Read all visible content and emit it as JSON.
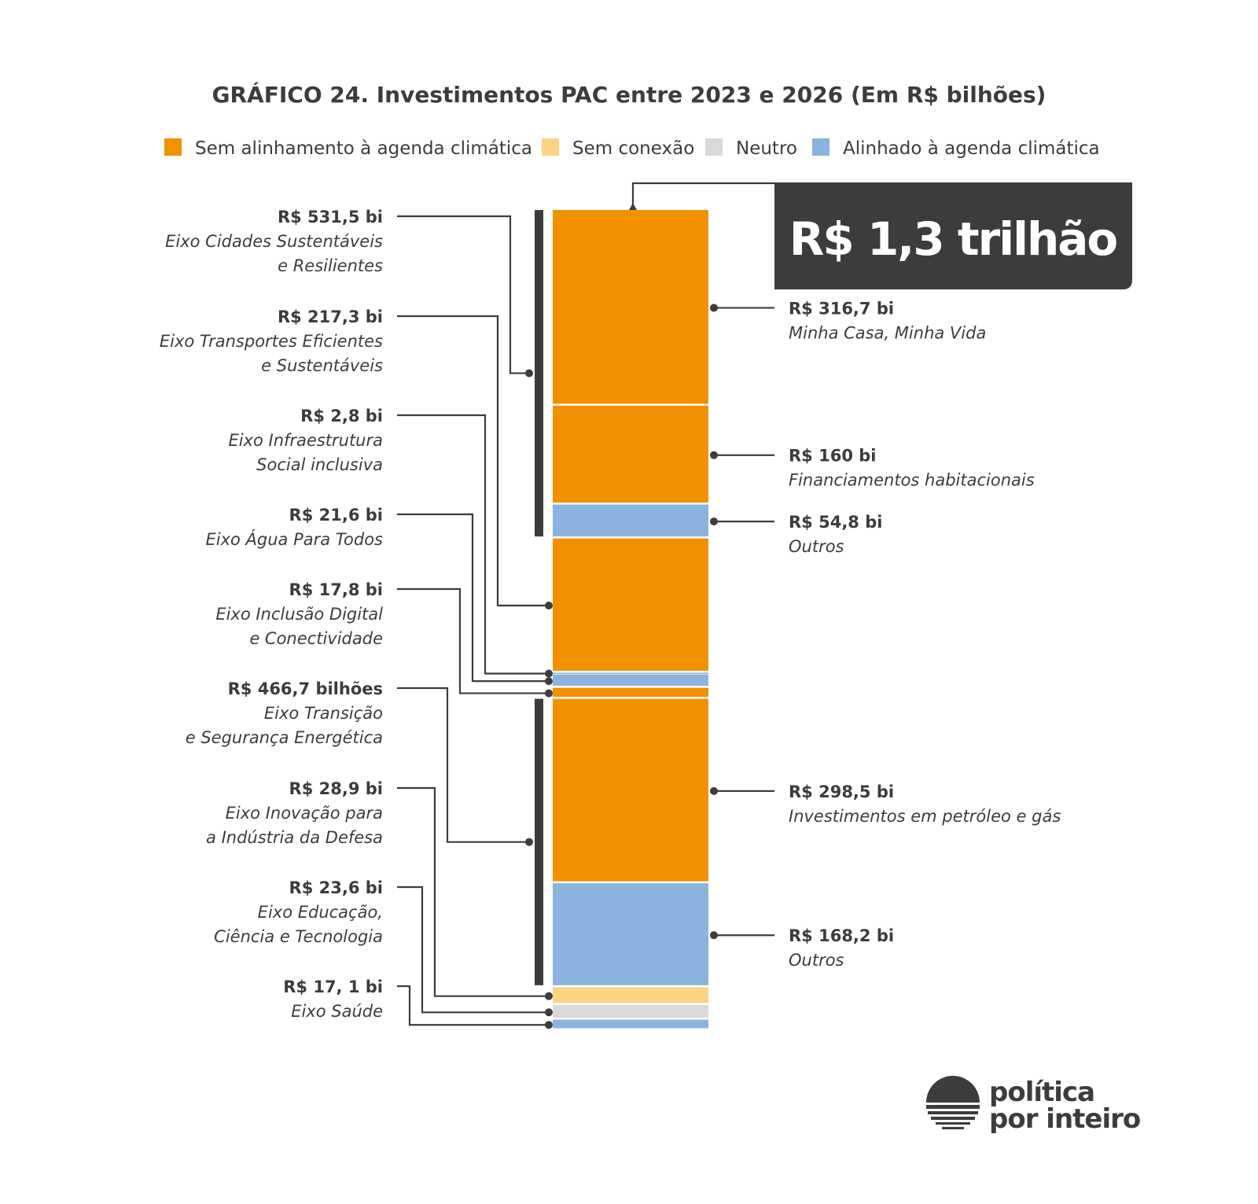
{
  "chart_data": {
    "type": "bar",
    "title": "GRÁFICO 24.  Investimentos PAC entre 2023 e 2026 (Em R$ bilhões)",
    "total_label": "R$ 1,3 trilhão",
    "legend": [
      {
        "key": "sem_alinhamento",
        "label": "Sem alinhamento à agenda climática",
        "color": "#f29100"
      },
      {
        "key": "sem_conexao",
        "label": "Sem conexão",
        "color": "#fcd383"
      },
      {
        "key": "neutro",
        "label": "Neutro",
        "color": "#d9d9d9"
      },
      {
        "key": "alinhado",
        "label": "Alinhado à agenda climática",
        "color": "#8ab3df"
      }
    ],
    "segments": [
      {
        "name": "Minha Casa, Minha Vida",
        "value": 316.7,
        "category": "sem_alinhamento"
      },
      {
        "name": "Financiamentos habitacionais",
        "value": 160,
        "category": "sem_alinhamento"
      },
      {
        "name": "Outros",
        "value": 54.8,
        "category": "alinhado"
      },
      {
        "name": "Eixo Transportes Eficientes e Sustentáveis",
        "value": 217.3,
        "category": "sem_alinhamento"
      },
      {
        "name": "Eixo Infraestrutura Social inclusiva",
        "value": 2.8,
        "category": "alinhado"
      },
      {
        "name": "Eixo Água Para Todos",
        "value": 21.6,
        "category": "alinhado"
      },
      {
        "name": "Eixo Inclusão Digital e Conectividade",
        "value": 17.8,
        "category": "sem_alinhamento"
      },
      {
        "name": "Investimentos em petróleo e gás",
        "value": 298.5,
        "category": "sem_alinhamento"
      },
      {
        "name": "Outros",
        "value": 168.2,
        "category": "alinhado"
      },
      {
        "name": "Eixo Inovação para a Indústria da Defesa",
        "value": 28.9,
        "category": "sem_conexao"
      },
      {
        "name": "Eixo Educação, Ciência e Tecnologia",
        "value": 23.6,
        "category": "neutro"
      },
      {
        "name": "Eixo Saúde",
        "value": 17.1,
        "category": "alinhado"
      }
    ],
    "left_labels": [
      {
        "value": "R$ 531,5 bi",
        "name_lines": [
          "Eixo Cidades Sustentáveis",
          "e Resilientes"
        ]
      },
      {
        "value": "R$ 217,3 bi",
        "name_lines": [
          "Eixo Transportes Eficientes",
          "e Sustentáveis"
        ]
      },
      {
        "value": "R$ 2,8 bi",
        "name_lines": [
          "Eixo Infraestrutura",
          "Social inclusiva"
        ]
      },
      {
        "value": "R$ 21,6 bi",
        "name_lines": [
          "Eixo Água Para Todos"
        ]
      },
      {
        "value": "R$ 17,8 bi",
        "name_lines": [
          "Eixo Inclusão Digital",
          "e Conectividade"
        ]
      },
      {
        "value": "R$ 466,7 bilhões",
        "name_lines": [
          "Eixo Transição",
          "e Segurança Energética"
        ]
      },
      {
        "value": "R$ 28,9 bi",
        "name_lines": [
          "Eixo Inovação para",
          "a Indústria da Defesa"
        ]
      },
      {
        "value": "R$ 23,6 bi",
        "name_lines": [
          "Eixo Educação,",
          "Ciência e Tecnologia"
        ]
      },
      {
        "value": "R$ 17, 1 bi",
        "name_lines": [
          "Eixo Saúde"
        ]
      }
    ],
    "right_labels": [
      {
        "value": "R$ 316,7 bi",
        "name": "Minha Casa, Minha Vida"
      },
      {
        "value": "R$ 160 bi",
        "name": "Financiamentos habitacionais"
      },
      {
        "value": "R$ 54,8 bi",
        "name": "Outros"
      },
      {
        "value": "R$ 298,5 bi",
        "name": "Investimentos em petróleo e gás"
      },
      {
        "value": "R$ 168,2 bi",
        "name": "Outros"
      }
    ]
  },
  "logo": {
    "line1": "política",
    "line2": "por inteiro"
  }
}
